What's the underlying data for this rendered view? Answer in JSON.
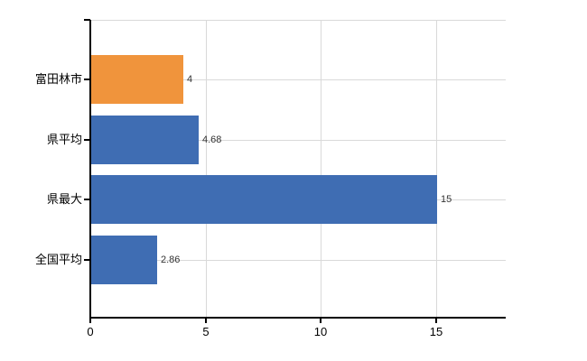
{
  "page": {
    "background_color": "#ffffff"
  },
  "chart_data": {
    "type": "bar",
    "orientation": "horizontal",
    "title": "",
    "xlabel": "",
    "ylabel": "",
    "categories": [
      "富田林市",
      "県平均",
      "県最大",
      "全国平均"
    ],
    "values": [
      4,
      4.68,
      15,
      2.86
    ],
    "value_labels": [
      "4",
      "4.68",
      "15",
      "2.86"
    ],
    "bar_colors": [
      "#F0943C",
      "#3F6DB3",
      "#3F6DB3",
      "#3F6DB3"
    ],
    "x_ticks": [
      0,
      5,
      10,
      15
    ],
    "x_tick_labels": [
      "0",
      "5",
      "10",
      "15"
    ],
    "xlim": [
      0,
      18
    ],
    "legend": "none",
    "grid": {
      "vertical": true,
      "horizontal_category_lines": true,
      "plot_top_border": true
    },
    "colors": {
      "axis": "#000000",
      "gridline": "#d9d9d9",
      "value_label": "#333333",
      "category_label": "#000000",
      "tick_label": "#000000"
    }
  }
}
